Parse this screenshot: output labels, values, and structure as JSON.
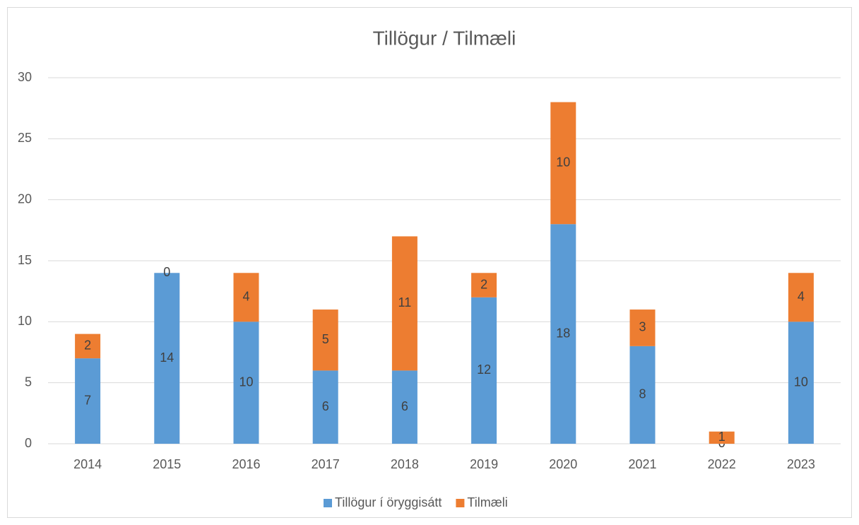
{
  "chart_data": {
    "type": "stacked_bar",
    "title": "Tillögur / Tilmæli",
    "categories": [
      "2014",
      "2015",
      "2016",
      "2017",
      "2018",
      "2019",
      "2020",
      "2021",
      "2022",
      "2023"
    ],
    "series": [
      {
        "name": "Tillögur í öryggisátt",
        "color": "#5b9bd5",
        "values": [
          7,
          14,
          10,
          6,
          6,
          12,
          18,
          8,
          0,
          10
        ]
      },
      {
        "name": "Tilmæli",
        "color": "#ed7d31",
        "values": [
          2,
          0,
          4,
          5,
          11,
          2,
          10,
          3,
          1,
          4
        ]
      }
    ],
    "ylim": [
      0,
      30
    ],
    "yticks": [
      0,
      5,
      10,
      15,
      20,
      25,
      30
    ],
    "grid": true,
    "legend": "bottom"
  }
}
